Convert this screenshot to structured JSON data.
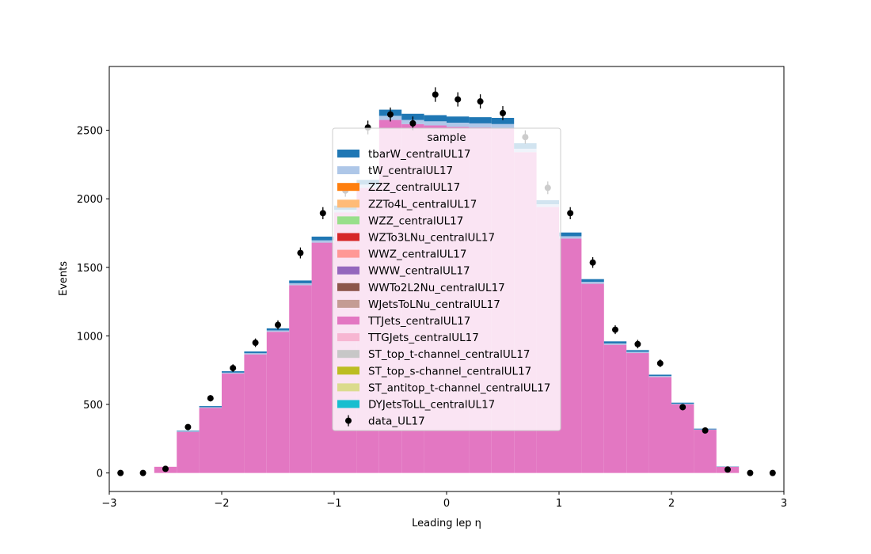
{
  "chart_data": {
    "type": "bar",
    "subtype": "stacked-histogram-with-data-points",
    "xlabel": "Leading lep η",
    "ylabel": "Events",
    "xlim": [
      -3,
      3
    ],
    "ylim": [
      -135,
      2965
    ],
    "x_ticks": [
      -3,
      -2,
      -1,
      0,
      1,
      2,
      3
    ],
    "x_tick_labels": [
      "−3",
      "−2",
      "−1",
      "0",
      "1",
      "2",
      "3"
    ],
    "y_ticks": [
      0,
      500,
      1000,
      1500,
      2000,
      2500
    ],
    "y_tick_labels": [
      "0",
      "500",
      "1000",
      "1500",
      "2000",
      "2500"
    ],
    "grid": false,
    "legend_title": "sample",
    "legend_placement": "center",
    "bin_edges": [
      -3.0,
      -2.8,
      -2.6,
      -2.4,
      -2.2,
      -2.0,
      -1.8,
      -1.6,
      -1.4,
      -1.2,
      -1.0,
      -0.8,
      -0.6,
      -0.4,
      -0.2,
      0.0,
      0.2,
      0.4,
      0.6,
      0.8,
      1.0,
      1.2,
      1.4,
      1.6,
      1.8,
      2.0,
      2.2,
      2.4,
      2.6,
      2.8,
      3.0
    ],
    "series": [
      {
        "name": "DYJetsToLL_centralUL17",
        "color": "#17becf",
        "values": [
          0,
          0,
          0,
          0,
          0,
          0,
          0,
          0,
          0,
          0,
          0,
          0,
          0,
          0,
          0,
          0,
          0,
          0,
          0,
          0,
          0,
          0,
          0,
          0,
          0,
          0,
          0,
          0,
          0,
          0
        ]
      },
      {
        "name": "ST_antitop_t-channel_centralUL17",
        "color": "#dbdb8d",
        "values": [
          0,
          0,
          0,
          0,
          0,
          0,
          0,
          0,
          0,
          0,
          0,
          0,
          0,
          0,
          0,
          0,
          0,
          0,
          0,
          0,
          0,
          0,
          0,
          0,
          0,
          0,
          0,
          0,
          0,
          0
        ]
      },
      {
        "name": "ST_top_s-channel_centralUL17",
        "color": "#bcbd22",
        "values": [
          0,
          0,
          0,
          0,
          0,
          0,
          0,
          0,
          0,
          0,
          0,
          0,
          0,
          0,
          0,
          0,
          0,
          0,
          0,
          0,
          0,
          0,
          0,
          0,
          0,
          0,
          0,
          0,
          0,
          0
        ]
      },
      {
        "name": "ST_top_t-channel_centralUL17",
        "color": "#c7c7c7",
        "values": [
          0,
          0,
          0,
          0,
          0,
          0,
          0,
          0,
          0,
          0,
          0,
          0,
          0,
          0,
          0,
          0,
          0,
          0,
          0,
          0,
          0,
          0,
          0,
          0,
          0,
          0,
          0,
          0,
          0,
          0
        ]
      },
      {
        "name": "TTGJets_centralUL17",
        "color": "#f7b6d2",
        "values": [
          0,
          0,
          0,
          0,
          0,
          0,
          0,
          0,
          0,
          0,
          0,
          0,
          0,
          0,
          0,
          0,
          0,
          0,
          0,
          0,
          0,
          0,
          0,
          0,
          0,
          0,
          0,
          0,
          0,
          0
        ]
      },
      {
        "name": "TTJets_centralUL17",
        "color": "#e377c2",
        "values": [
          0,
          0,
          45,
          300,
          475,
          725,
          865,
          1030,
          1370,
          1680,
          1900,
          2080,
          2575,
          2545,
          2535,
          2525,
          2520,
          2515,
          2340,
          1940,
          1710,
          1380,
          935,
          875,
          700,
          500,
          315,
          45,
          0,
          0
        ]
      },
      {
        "name": "WJetsToLNu_centralUL17",
        "color": "#c49c94",
        "values": [
          0,
          0,
          0,
          0,
          0,
          0,
          0,
          0,
          0,
          0,
          0,
          0,
          0,
          0,
          0,
          0,
          0,
          0,
          0,
          0,
          0,
          0,
          0,
          0,
          0,
          0,
          0,
          0,
          0,
          0
        ]
      },
      {
        "name": "WWTo2L2Nu_centralUL17",
        "color": "#8c564b",
        "values": [
          0,
          0,
          0,
          0,
          0,
          0,
          0,
          0,
          0,
          0,
          0,
          0,
          0,
          0,
          0,
          0,
          0,
          0,
          0,
          0,
          0,
          0,
          0,
          0,
          0,
          0,
          0,
          0,
          0,
          0
        ]
      },
      {
        "name": "WWW_centralUL17",
        "color": "#9467bd",
        "values": [
          0,
          0,
          0,
          0,
          0,
          0,
          0,
          0,
          0,
          0,
          0,
          0,
          0,
          0,
          0,
          0,
          0,
          0,
          0,
          0,
          0,
          0,
          0,
          0,
          0,
          0,
          0,
          0,
          0,
          0
        ]
      },
      {
        "name": "WWZ_centralUL17",
        "color": "#ff9896",
        "values": [
          0,
          0,
          0,
          0,
          0,
          0,
          0,
          0,
          0,
          0,
          0,
          0,
          0,
          0,
          0,
          0,
          0,
          0,
          0,
          0,
          0,
          0,
          0,
          0,
          0,
          0,
          0,
          0,
          0,
          0
        ]
      },
      {
        "name": "WZTo3LNu_centralUL17",
        "color": "#d62728",
        "values": [
          0,
          0,
          0,
          0,
          0,
          0,
          0,
          0,
          0,
          0,
          0,
          0,
          0,
          0,
          0,
          0,
          0,
          0,
          0,
          0,
          0,
          0,
          0,
          0,
          0,
          0,
          0,
          0,
          0,
          0
        ]
      },
      {
        "name": "WZZ_centralUL17",
        "color": "#98df8a",
        "values": [
          0,
          0,
          0,
          0,
          0,
          0,
          0,
          0,
          0,
          0,
          0,
          0,
          0,
          0,
          0,
          0,
          0,
          0,
          0,
          0,
          0,
          0,
          0,
          0,
          0,
          0,
          0,
          0,
          0,
          0
        ]
      },
      {
        "name": "ZZTo4L_centralUL17",
        "color": "#ffbb78",
        "values": [
          0,
          0,
          0,
          0,
          0,
          0,
          0,
          0,
          0,
          0,
          0,
          0,
          0,
          0,
          0,
          0,
          0,
          0,
          0,
          0,
          0,
          0,
          0,
          0,
          0,
          0,
          0,
          0,
          0,
          0
        ]
      },
      {
        "name": "ZZZ_centralUL17",
        "color": "#ff7f0e",
        "values": [
          0,
          0,
          0,
          0,
          0,
          0,
          0,
          0,
          0,
          0,
          0,
          0,
          0,
          0,
          0,
          0,
          0,
          0,
          0,
          0,
          0,
          0,
          0,
          0,
          0,
          0,
          0,
          0,
          0,
          0
        ]
      },
      {
        "name": "tW_centralUL17",
        "color": "#aec7e8",
        "values": [
          0,
          0,
          0,
          3,
          5,
          7,
          9,
          10,
          14,
          17,
          20,
          23,
          30,
          30,
          30,
          30,
          30,
          30,
          25,
          20,
          17,
          14,
          10,
          9,
          7,
          5,
          3,
          0,
          0,
          0
        ]
      },
      {
        "name": "tbarW_centralUL17",
        "color": "#1f77b4",
        "values": [
          0,
          0,
          0,
          5,
          8,
          10,
          12,
          15,
          20,
          27,
          30,
          35,
          45,
          45,
          45,
          45,
          45,
          45,
          40,
          30,
          27,
          20,
          15,
          12,
          10,
          8,
          5,
          2,
          0,
          0
        ]
      }
    ],
    "data_series": {
      "name": "data_UL17",
      "color": "#000000",
      "x": [
        -2.9,
        -2.7,
        -2.5,
        -2.3,
        -2.1,
        -1.9,
        -1.7,
        -1.5,
        -1.3,
        -1.1,
        -0.9,
        -0.7,
        -0.5,
        -0.3,
        -0.1,
        0.1,
        0.3,
        0.5,
        0.7,
        0.9,
        1.1,
        1.3,
        1.5,
        1.7,
        1.9,
        2.1,
        2.3,
        2.5,
        2.7,
        2.9
      ],
      "y": [
        0,
        0,
        30,
        335,
        545,
        765,
        950,
        1080,
        1605,
        1895,
        2060,
        2520,
        2615,
        2550,
        2760,
        2725,
        2710,
        2625,
        2450,
        2080,
        1895,
        1535,
        1045,
        940,
        800,
        480,
        310,
        25,
        0,
        0
      ],
      "yerr": [
        0,
        0,
        6,
        18,
        23,
        28,
        31,
        33,
        40,
        44,
        45,
        50,
        51,
        50,
        53,
        52,
        52,
        51,
        49,
        46,
        44,
        39,
        32,
        31,
        28,
        22,
        18,
        5,
        0,
        0
      ]
    }
  }
}
